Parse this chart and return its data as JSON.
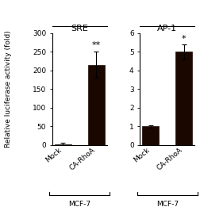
{
  "sre_bars": [
    2,
    215
  ],
  "sre_errors": [
    3,
    35
  ],
  "ap1_bars": [
    1.0,
    5.0
  ],
  "ap1_errors": [
    0.07,
    0.4
  ],
  "bar_color": "#1a0800",
  "bar_width": 0.5,
  "sre_ylim": [
    0,
    300
  ],
  "sre_yticks": [
    0,
    50,
    100,
    150,
    200,
    250,
    300
  ],
  "ap1_ylim": [
    0,
    6
  ],
  "ap1_yticks": [
    0,
    1,
    2,
    3,
    4,
    5,
    6
  ],
  "categories": [
    "Mock",
    "CA-RhoA"
  ],
  "sre_title": "SRE",
  "ap1_title": "AP-1",
  "xlabel": "MCF-7",
  "ylabel": "Relative luciferase activity (fold)",
  "sre_significance": "**",
  "ap1_significance": "*",
  "title_fontsize": 8,
  "label_fontsize": 6.5,
  "tick_fontsize": 6.5,
  "sig_fontsize": 8,
  "ylabel_fontsize": 6.5
}
